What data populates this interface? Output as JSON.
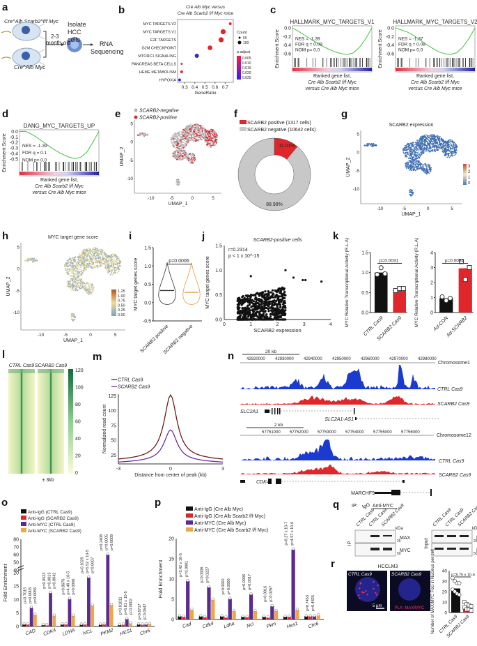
{
  "figure": {
    "panels": [
      "a",
      "b",
      "c",
      "d",
      "e",
      "f",
      "g",
      "h",
      "i",
      "j",
      "k",
      "l",
      "m",
      "n",
      "o",
      "p",
      "q",
      "r"
    ]
  },
  "panel_a": {
    "mouse_top_label": "Cre^Alb Scarb2^f/f Myc",
    "mouse_bottom_label": "Cre^Alb Myc",
    "age_label": "2-3",
    "age_label2": "month-old",
    "step1": "Isolate",
    "step1b": "HCC",
    "step1c": "cells",
    "step2": "RNA",
    "step2b": "Sequencing"
  },
  "chart_data": [
    {
      "id": "b",
      "type": "scatter",
      "title": "Cre^Alb Myc versus Cre^Alb Scarb2^f/f Myc mice",
      "xlabel": "GeneRatio",
      "ylabel": "",
      "categories": [
        "MYC TARGETS V2",
        "MYC TARGETS V1",
        "E2F TARGETS",
        "G2M CHECKPOINT",
        "MTORC1 SIGNALING",
        "PANCREAS BETA CELLS",
        "HEME METABOLISM",
        "HYPOXIA"
      ],
      "x": [
        0.75,
        0.68,
        0.66,
        0.55,
        0.42,
        0.27,
        0.27,
        0.25
      ],
      "count": [
        30,
        80,
        80,
        70,
        60,
        15,
        30,
        30
      ],
      "p_adjust": [
        0.003,
        0.003,
        0.003,
        0.004,
        0.025,
        0.005,
        0.005,
        0.022
      ],
      "xlim": [
        0.23,
        0.78
      ],
      "xticks": [
        "0.3",
        "0.4",
        "0.5",
        "0.6",
        "0.7"
      ],
      "legend_count_title": "Count",
      "legend_count": [
        "50",
        "100"
      ],
      "legend_padj_title": "p.adjust",
      "legend_padj": [
        "0.005",
        "0.010",
        "0.015",
        "0.020",
        "0.025"
      ]
    },
    {
      "id": "c1",
      "type": "line",
      "title": "HALLMARK_MYC_TARGETS_V1",
      "ylabel": "Enrichment Score",
      "yticks": [
        "0.0",
        "-0.2",
        "-0.4",
        "-0.6"
      ],
      "ylim": [
        -0.7,
        0.05
      ],
      "curve": [
        0,
        -0.08,
        -0.17,
        -0.26,
        -0.35,
        -0.43,
        -0.5,
        -0.56,
        -0.6,
        -0.62,
        -0.58,
        -0.45,
        -0.25,
        0
      ],
      "nes": "NES = -1.39",
      "fdr": "FDR q = 0.09",
      "nom": "NOM p= 0.0",
      "xlabel1": "Ranked gene list,",
      "xlabel2": "Cre^Alb Scarb2^f/f Myc",
      "xlabel3": "versus Cre^Alb Myc mice"
    },
    {
      "id": "c2",
      "type": "line",
      "title": "HALLMARK_MYC_TARGETS_V2",
      "ylabel": "Enrichment Score",
      "yticks": [
        "0.0",
        "-0.2",
        "-0.4",
        "-0.6"
      ],
      "ylim": [
        -0.7,
        0.05
      ],
      "curve": [
        0,
        -0.05,
        -0.1,
        -0.18,
        -0.28,
        -0.38,
        -0.47,
        -0.55,
        -0.6,
        -0.62,
        -0.58,
        -0.45,
        -0.25,
        0
      ],
      "nes": "NES = -1.37",
      "fdr": "FDR q = 0.08",
      "nom": "NOM p= 0.0",
      "xlabel1": "Ranked gene list,",
      "xlabel2": "Cre^Alb Scarb2^f/f Myc",
      "xlabel3": "versus Cre^Alb Myc mice"
    },
    {
      "id": "d",
      "type": "line",
      "title": "DANG_MYC_TARGETS_UP",
      "ylabel": "Enrichment Score",
      "yticks": [
        "0.0",
        "-0.1",
        "-0.2",
        "-0.3",
        "-0.4",
        "-0.5"
      ],
      "ylim": [
        -0.55,
        0.03
      ],
      "curve": [
        0,
        0,
        -0.05,
        -0.12,
        -0.2,
        -0.28,
        -0.35,
        -0.41,
        -0.46,
        -0.49,
        -0.47,
        -0.38,
        -0.2,
        0
      ],
      "nes": "NES = -1.39",
      "fdr": "FDR q = 0.1",
      "nom": "NOM p= 0.0",
      "xlabel1": "Ranked gene list,",
      "xlabel2": "Cre^Alb Scarb2^f/f Myc",
      "xlabel3": "versus Cre^Alb Myc mice"
    },
    {
      "id": "f",
      "type": "pie",
      "labels": [
        "SCARB2 positive (1317 cells)",
        "SCARB2 negative (10642 cells)"
      ],
      "values": [
        11.01,
        88.98
      ],
      "value_labels": [
        "11.01%",
        "88.98%"
      ],
      "colors": [
        "#e0262b",
        "#c8c8c8"
      ]
    },
    {
      "id": "i",
      "type": "violin",
      "ylabel": "MYC target genes score",
      "categories": [
        "SCARB2 positive",
        "SCARB2 negative"
      ],
      "medians": [
        0.33,
        0.28
      ],
      "ylim": [
        -0.5,
        1.5
      ],
      "yticks": [
        "1.5",
        "1.0",
        "0.5",
        "0.0",
        "-0.5"
      ],
      "pvalue": "p=0.0006"
    },
    {
      "id": "j",
      "type": "scatter",
      "title": "SCARB2-positive cells",
      "xlabel": "SCARB2 expression",
      "ylabel": "MYC target genes score",
      "xlim": [
        0,
        4
      ],
      "ylim": [
        0,
        1.5
      ],
      "xticks": [
        "0",
        "1",
        "2",
        "3",
        "4"
      ],
      "yticks": [
        "0.0",
        "0.5",
        "1.0",
        "1.5"
      ],
      "r": "r=0.2314",
      "p": "p < 1 x 10^-15"
    },
    {
      "id": "k1",
      "type": "bar",
      "categories": [
        "CTRL^Cas9",
        "SCARB2^Cas9"
      ],
      "values": [
        1.0,
        0.58
      ],
      "points": [
        [
          0.95,
          1.12,
          0.97
        ],
        [
          0.55,
          0.6,
          0.6
        ]
      ],
      "colors": [
        "#111111",
        "#e0262b"
      ],
      "ylabel": "MYC Relative Transcriptional Activity (R.L.A)",
      "ylim": [
        0,
        1.5
      ],
      "yticks": [
        "0.0",
        "0.5",
        "1.0",
        "1.5"
      ],
      "pvalue": "p=0.0031"
    },
    {
      "id": "k2",
      "type": "bar",
      "categories": [
        "Ad-CON",
        "Ad-SCARB2"
      ],
      "values": [
        0.95,
        2.95
      ],
      "points": [
        [
          1.05,
          0.8,
          0.95
        ],
        [
          3.4,
          2.2,
          3.0
        ]
      ],
      "colors": [
        "#111111",
        "#e0262b"
      ],
      "ylabel": "MYC Relative Transcriptional Activity (R.L.A)",
      "ylim": [
        0,
        4
      ],
      "yticks": [
        "0",
        "1",
        "2",
        "3",
        "4"
      ],
      "pvalue": "p=0.0034"
    },
    {
      "id": "m",
      "type": "line",
      "xlabel": "Distance from center of peak (kb)",
      "ylabel": "Normalized read count",
      "xlim": [
        -3,
        3
      ],
      "ylim": [
        10,
        128
      ],
      "xticks": [
        "-3",
        "0",
        "3"
      ],
      "yticks": [
        "25",
        "50",
        "75",
        "100",
        "125"
      ],
      "series": [
        {
          "name": "CTRL^Cas9",
          "color": "#6b1a1a",
          "peak": 123,
          "base": 16
        },
        {
          "name": "SCARB2^Cas9",
          "color": "#6a2aa8",
          "peak": 64,
          "base": 12
        }
      ]
    },
    {
      "id": "o",
      "type": "bar",
      "ylabel": "Fold Enrichment",
      "categories": [
        "CAD",
        "CDK4",
        "LDHA",
        "NCL",
        "PKM2",
        "HES1",
        "Chr6"
      ],
      "series": [
        {
          "name": "Anti-IgG (CTRL^Cas9)",
          "color": "#111111",
          "values": [
            0.8,
            0.6,
            0.8,
            0.7,
            0.7,
            0.6,
            0.8
          ]
        },
        {
          "name": "Anti-IgG (SCARB2^Cas9)",
          "color": "#e0262b",
          "values": [
            0.8,
            0.5,
            0.8,
            0.8,
            0.8,
            0.7,
            0.7
          ]
        },
        {
          "name": "Anti-MYC (CTRL^Cas9)",
          "color": "#5b2c8f",
          "values": [
            7.0,
            12.5,
            10.2,
            18.2,
            60,
            2.8,
            0.8
          ]
        },
        {
          "name": "Anti-MYC (SCARB2^Cas9)",
          "color": "#eea64a",
          "values": [
            4.3,
            4.0,
            4.0,
            7.8,
            8.0,
            1.2,
            0.9
          ]
        }
      ],
      "pvalues": [
        [
          "p=0.7015",
          "p=0.0003",
          "p=0.0056"
        ],
        [
          "p=0.0523",
          "p=0.0013",
          "p=0.0042"
        ],
        [
          "p=0.8676",
          "p=4.46 x 10^-5",
          "p=0.0006"
        ],
        [
          "p=0.1028",
          "p=5.52 x 10^-5",
          "p=0.0007"
        ],
        [
          "p=0.2408",
          "p=0.0005",
          "p=0.0009"
        ],
        [
          "p=0.81011",
          "p=6.81 x 10^-5",
          "p=0.0002"
        ],
        [
          "p=0.6717",
          "p=0.0547"
        ]
      ],
      "yticks_low": [
        "0",
        "5",
        "10",
        "15",
        "20"
      ],
      "yticks_high": [
        "40",
        "50",
        "60",
        "70",
        "80"
      ]
    },
    {
      "id": "p",
      "type": "bar",
      "ylabel": "Fold Enrichment",
      "categories": [
        "Cad",
        "Cdk4",
        "Ldha",
        "Ncl",
        "Pkm",
        "Hes1",
        "Chr6"
      ],
      "series": [
        {
          "name": "Anti-IgG (Cre^Alb Myc)",
          "color": "#111111",
          "values": [
            0.8,
            0.8,
            0.8,
            0.7,
            0.7,
            0.7,
            0.8
          ]
        },
        {
          "name": "Anti-IgG (Cre^Alb Scarb2^f/f Myc)",
          "color": "#e0262b",
          "values": [
            0.7,
            0.6,
            0.5,
            0.6,
            0.5,
            0.7,
            0.8
          ]
        },
        {
          "name": "Anti-MYC (Cre^Alb Myc)",
          "color": "#5b2c8f",
          "values": [
            9.5,
            8.0,
            5.1,
            6.2,
            3.3,
            17.3,
            0.8
          ]
        },
        {
          "name": "Anti-MYC (Cre^Alb Scarb2^f/f Myc)",
          "color": "#eea64a",
          "values": [
            2.4,
            4.9,
            2.1,
            2.1,
            2.1,
            2.4,
            1.0
          ]
        }
      ],
      "pvalues": [
        [
          "p=3.42 x 10^-5",
          "p=0.0001"
        ],
        [
          "p=0.0006",
          "p=0.0227"
        ],
        [
          "p=0.0002",
          "p=0.0006"
        ],
        [
          "p=0.0006",
          "p=0.0017"
        ],
        [
          "p=0.0016",
          "p=0.0267"
        ],
        [
          "p=8.27 x 10^-7",
          "p=4.57 x 10^-6"
        ],
        [
          "p=0.7453",
          "p=0.4825"
        ]
      ],
      "ylim": [
        0,
        20
      ],
      "yticks": [
        "0",
        "5",
        "10",
        "15",
        "20"
      ]
    },
    {
      "id": "r",
      "type": "bar",
      "ylabel": "Number of MAX/MYC Foci in Nucleus per cell",
      "categories": [
        "CTRL^Cas9",
        "SCARB2^Cas9"
      ],
      "values": [
        23,
        5
      ],
      "points": [
        [
          33,
          30,
          28,
          28,
          22,
          20,
          18,
          17
        ],
        [
          10,
          8,
          7,
          6,
          5,
          3,
          3,
          2
        ]
      ],
      "colors": [
        "#111111",
        "#e0262b"
      ],
      "ylim": [
        0,
        40
      ],
      "yticks": [
        "0",
        "10",
        "20",
        "30",
        "40"
      ],
      "pvalue": "p=8.75 x 10^-6"
    }
  ],
  "umap": {
    "e_legend_neg": "SCARB2-negative",
    "e_legend_pos": "SCARB2-positive",
    "g_title": "SCARB2 expression",
    "g_scale": [
      "3",
      "2",
      "1",
      "0"
    ],
    "h_title": "MYC target gene score",
    "h_scale": [
      "1.25",
      "1.00",
      "0.75",
      "0.50",
      "0.25",
      "0.00"
    ],
    "xlabel": "UMAP_1",
    "ylabel": "UMAP_2",
    "xticks": [
      "-10",
      "-5",
      "0",
      "5"
    ],
    "yticks": [
      "5",
      "0",
      "-5",
      "-10"
    ]
  },
  "panel_l": {
    "col1": "CTRL^Cas9",
    "col2": "SCARB2^Cas9",
    "scale": [
      "120",
      "100",
      "80",
      "60",
      "40",
      "20",
      "0"
    ],
    "xlabel": "± 3kb"
  },
  "panel_n": {
    "scale1": "20 kb",
    "coords1": [
      "42920000",
      "42930000",
      "42940000",
      "42950000",
      "42960000",
      "42970000",
      "42980000"
    ],
    "chrom1": "Chromosome1",
    "track_ctrl": "CTRL^Cas9",
    "track_scarb2": "SCARB2^Cas9",
    "gene1": "SLC2A1",
    "gene2": "SLC2A1-AS1",
    "scale2": "2 kb",
    "coords2": [
      "57751000",
      "57752000",
      "57753000",
      "57754000",
      "57755000",
      "57756000"
    ],
    "chrom2": "Chromosome12",
    "gene3": "CDK4",
    "gene4": "MARCHF9"
  },
  "panel_q": {
    "ip_label": "IP:",
    "igg": "IgG",
    "anti_myc": "Anti-MYC",
    "lanes": [
      "CTRL^Cas9",
      "CTRL^Cas9",
      "SCARB2^Cas9"
    ],
    "kda": "kDa",
    "max": "MAX",
    "myc": "MYC",
    "m25": "25",
    "m50": "50",
    "ip_side": "IP",
    "input_side": "Input"
  },
  "panel_r": {
    "title": "HCCLM3",
    "img1": "CTRL^Cas9",
    "img2": "SCARB2^Cas9",
    "scalebar": "5 μm",
    "pla": "PLA: MAX/MYC"
  }
}
